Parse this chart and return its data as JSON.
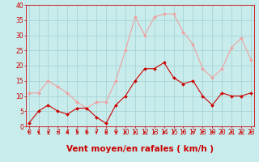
{
  "xlabel": "Vent moyen/en rafales ( km/h )",
  "hours": [
    0,
    1,
    2,
    3,
    4,
    5,
    6,
    7,
    8,
    9,
    10,
    11,
    12,
    13,
    14,
    15,
    16,
    17,
    18,
    19,
    20,
    21,
    22,
    23
  ],
  "wind_mean": [
    1,
    5,
    7,
    5,
    4,
    6,
    6,
    3,
    1,
    7,
    10,
    15,
    19,
    19,
    21,
    16,
    14,
    15,
    10,
    7,
    11,
    10,
    10,
    11
  ],
  "wind_gust": [
    11,
    11,
    15,
    13,
    11,
    8,
    6,
    8,
    8,
    15,
    25,
    36,
    30,
    36,
    37,
    37,
    31,
    27,
    19,
    16,
    19,
    26,
    29,
    22
  ],
  "mean_color": "#cc0000",
  "gust_color": "#f0a0a0",
  "bg_color": "#c8ecec",
  "grid_color": "#a8d4d4",
  "ylim": [
    0,
    40
  ],
  "yticks": [
    0,
    5,
    10,
    15,
    20,
    25,
    30,
    35,
    40
  ],
  "tick_color": "#cc0000",
  "label_color": "#cc0000",
  "xlabel_fontsize": 7.5,
  "tick_fontsize": 5.5
}
